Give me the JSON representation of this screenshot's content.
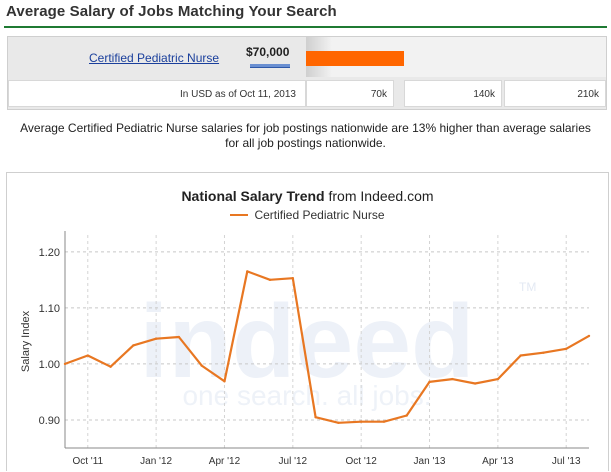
{
  "header": {
    "title": "Average Salary of Jobs Matching Your Search"
  },
  "salary": {
    "job_title": "Certified Pediatric Nurse",
    "amount": "$70,000",
    "bar_fraction": 0.4667,
    "currency_note": "In USD as of Oct 11, 2013",
    "scale_ticks": [
      "70k",
      "140k",
      "210k"
    ],
    "bar_color": "#ff6600"
  },
  "summary": {
    "line1": "Average Certified Pediatric Nurse salaries for job postings nationwide are 13% higher than average salaries",
    "line2": "for all job postings nationwide."
  },
  "trend": {
    "title_bold": "National Salary Trend",
    "title_rest": " from Indeed.com",
    "watermark": "indeed",
    "watermark_tagline": "one search. all jobs.",
    "watermark_tm": "TM"
  },
  "chart_data": {
    "type": "line",
    "title": "National Salary Trend from Indeed.com",
    "ylabel": "Salary Index",
    "xlabel": "",
    "ylim": [
      0.85,
      1.23
    ],
    "yticks": [
      0.9,
      1.0,
      1.1,
      1.2
    ],
    "ytick_labels": [
      "0.90",
      "1.00",
      "1.10",
      "1.20"
    ],
    "xtick_labels": [
      "Oct '11",
      "Jan '12",
      "Apr '12",
      "Jul '12",
      "Oct '12",
      "Jan '13",
      "Apr '13",
      "Jul '13"
    ],
    "xtick_months": [
      0,
      3,
      6,
      9,
      12,
      15,
      18,
      21
    ],
    "x_months": [
      -1,
      0,
      1,
      2,
      3,
      4,
      5,
      6,
      7,
      8,
      9,
      10,
      11,
      12,
      13,
      14,
      15,
      16,
      17,
      18,
      19,
      20,
      21,
      22
    ],
    "grid": true,
    "legend_position": "top-center",
    "series": [
      {
        "name": "Certified Pediatric Nurse",
        "color": "#e87722",
        "values": [
          1.0,
          1.015,
          0.995,
          1.033,
          1.045,
          1.048,
          0.997,
          0.969,
          1.165,
          1.15,
          1.153,
          0.905,
          0.895,
          0.897,
          0.897,
          0.908,
          0.968,
          0.973,
          0.965,
          0.973,
          1.015,
          1.02,
          1.027,
          1.05
        ]
      }
    ]
  }
}
